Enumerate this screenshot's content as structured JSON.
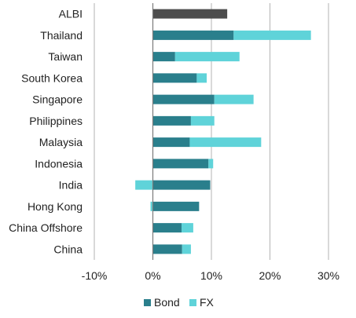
{
  "chart_data": {
    "type": "bar",
    "orientation": "horizontal",
    "stacked": true,
    "categories": [
      "ALBI",
      "Thailand",
      "Taiwan",
      "South Korea",
      "Singapore",
      "Philippines",
      "Malaysia",
      "Indonesia",
      "India",
      "Hong Kong",
      "China Offshore",
      "China"
    ],
    "series": [
      {
        "name": "Bond",
        "color": "#2a7f8c",
        "values": [
          null,
          13.8,
          3.8,
          7.5,
          10.5,
          6.5,
          6.3,
          9.5,
          9.8,
          7.9,
          4.9,
          5.0
        ]
      },
      {
        "name": "FX",
        "color": "#5fd3d9",
        "values": [
          null,
          13.2,
          11.0,
          1.7,
          6.7,
          4.0,
          12.2,
          0.8,
          -3.0,
          -0.4,
          2.0,
          1.5
        ]
      }
    ],
    "total_series": {
      "category": "ALBI",
      "value": 12.7,
      "color": "#4d4d4d"
    },
    "xlim": [
      -10,
      30
    ],
    "xticks": [
      -10,
      0,
      10,
      20,
      30
    ],
    "xtick_labels": [
      "-10%",
      "0%",
      "10%",
      "20%",
      "30%"
    ],
    "grid": "vertical",
    "legend_position": "bottom",
    "legend": [
      "Bond",
      "FX"
    ],
    "title": "",
    "xlabel": "",
    "ylabel": ""
  }
}
